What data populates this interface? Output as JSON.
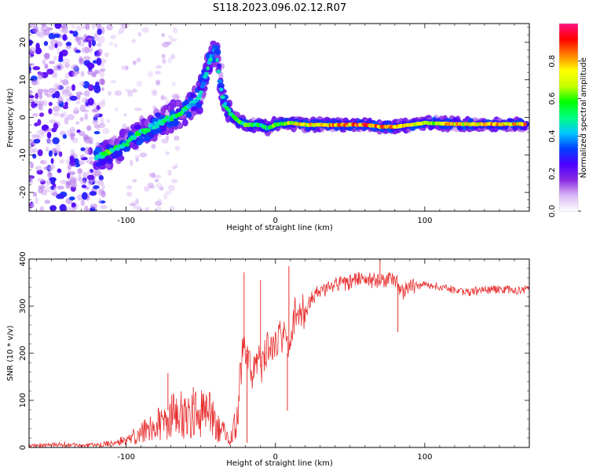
{
  "title": "S118.2023.096.02.12.R07",
  "chart_data": [
    {
      "type": "heatmap",
      "xlabel": "Height of straight line (km)",
      "ylabel": "Frequency (Hz)",
      "xlim": [
        -165,
        170
      ],
      "ylim": [
        -25,
        25
      ],
      "xticks": [
        -100,
        0,
        100
      ],
      "yticks": [
        -20,
        -10,
        0,
        10,
        20
      ],
      "colorbar": {
        "label": "Normalized spectral amplitude",
        "ticks": [
          "0.0",
          "0.2",
          "0.4",
          "0.6",
          "0.8"
        ],
        "range": [
          0,
          1
        ],
        "colors": [
          "#ffffff",
          "#d9b8f5",
          "#8a2be2",
          "#4b00ff",
          "#0040ff",
          "#00c8ff",
          "#00ff80",
          "#00ff00",
          "#c8ff00",
          "#ffff00",
          "#ff8000",
          "#ff0000",
          "#ff1080"
        ]
      },
      "ridge": {
        "x": [
          -120,
          -110,
          -100,
          -90,
          -80,
          -70,
          -60,
          -50,
          -45,
          -40,
          -35,
          -30,
          -25,
          -20,
          -15,
          -10,
          -5,
          0,
          10,
          20,
          40,
          60,
          70,
          80,
          90,
          100,
          120,
          140,
          160,
          168
        ],
        "y": [
          -11,
          -9,
          -7,
          -4,
          -2,
          0,
          2,
          6,
          14,
          18,
          4,
          1,
          -1,
          -2,
          -2,
          -2,
          -3,
          -2,
          -1.5,
          -2,
          -2,
          -2,
          -2.5,
          -2.5,
          -2,
          -1.5,
          -1.8,
          -1.8,
          -1.8,
          -1.8
        ],
        "amplitude": [
          0.55,
          0.6,
          0.5,
          0.55,
          0.5,
          0.55,
          0.55,
          0.45,
          0.5,
          0.4,
          0.5,
          0.55,
          0.6,
          0.6,
          0.6,
          0.55,
          0.5,
          0.65,
          0.7,
          0.8,
          0.85,
          0.9,
          0.85,
          0.8,
          0.8,
          0.7,
          0.8,
          0.85,
          0.85,
          0.85
        ]
      }
    },
    {
      "type": "line",
      "xlabel": "Height of straight line (km)",
      "ylabel": "SNR (10 * v/v)",
      "xlim": [
        -165,
        170
      ],
      "ylim": [
        0,
        400
      ],
      "xticks": [
        -100,
        0,
        100
      ],
      "yticks": [
        0,
        100,
        200,
        300,
        400
      ],
      "color": "#e83030",
      "x": [
        -165,
        -150,
        -140,
        -130,
        -120,
        -110,
        -100,
        -90,
        -80,
        -75,
        -70,
        -65,
        -60,
        -55,
        -50,
        -45,
        -40,
        -35,
        -30,
        -25,
        -22,
        -20,
        -18,
        -15,
        -12,
        -10,
        -5,
        0,
        5,
        8,
        10,
        12,
        15,
        20,
        25,
        30,
        40,
        50,
        60,
        70,
        80,
        85,
        90,
        100,
        110,
        120,
        130,
        140,
        150,
        160,
        170
      ],
      "y": [
        5,
        8,
        8,
        6,
        7,
        10,
        20,
        40,
        60,
        70,
        85,
        90,
        80,
        90,
        100,
        90,
        60,
        40,
        20,
        100,
        200,
        220,
        180,
        160,
        200,
        170,
        210,
        230,
        240,
        200,
        210,
        280,
        280,
        290,
        320,
        330,
        350,
        350,
        360,
        350,
        360,
        330,
        340,
        345,
        340,
        335,
        330,
        335,
        335,
        335,
        335
      ],
      "spikes": [
        {
          "x": -72,
          "y": 158
        },
        {
          "x": -55,
          "y": 128
        },
        {
          "x": -21,
          "y": 372
        },
        {
          "x": -19,
          "y": 10
        },
        {
          "x": -10,
          "y": 355
        },
        {
          "x": 8,
          "y": 78
        },
        {
          "x": 9,
          "y": 385
        },
        {
          "x": 70,
          "y": 400
        },
        {
          "x": 82,
          "y": 245
        }
      ]
    }
  ]
}
